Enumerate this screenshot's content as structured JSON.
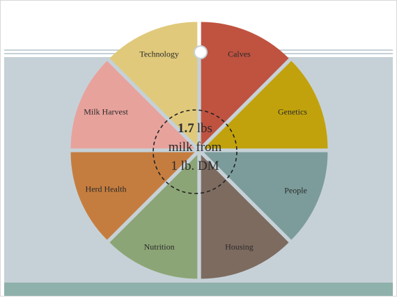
{
  "wheel": {
    "segments": [
      {
        "label": "Calves",
        "color": "#bf5340"
      },
      {
        "label": "Genetics",
        "color": "#c2a20c"
      },
      {
        "label": "People",
        "color": "#7b9c9a"
      },
      {
        "label": "Housing",
        "color": "#7d6b60"
      },
      {
        "label": "Nutrition",
        "color": "#8ca576"
      },
      {
        "label": "Herd Health",
        "color": "#c57d3f"
      },
      {
        "label": "Milk Harvest",
        "color": "#e8a29c"
      },
      {
        "label": "Technology",
        "color": "#e0c97a"
      }
    ]
  },
  "center": {
    "value": "1.7",
    "unit": "lbs",
    "line2": "milk from",
    "line3": "1 lb. DM"
  }
}
